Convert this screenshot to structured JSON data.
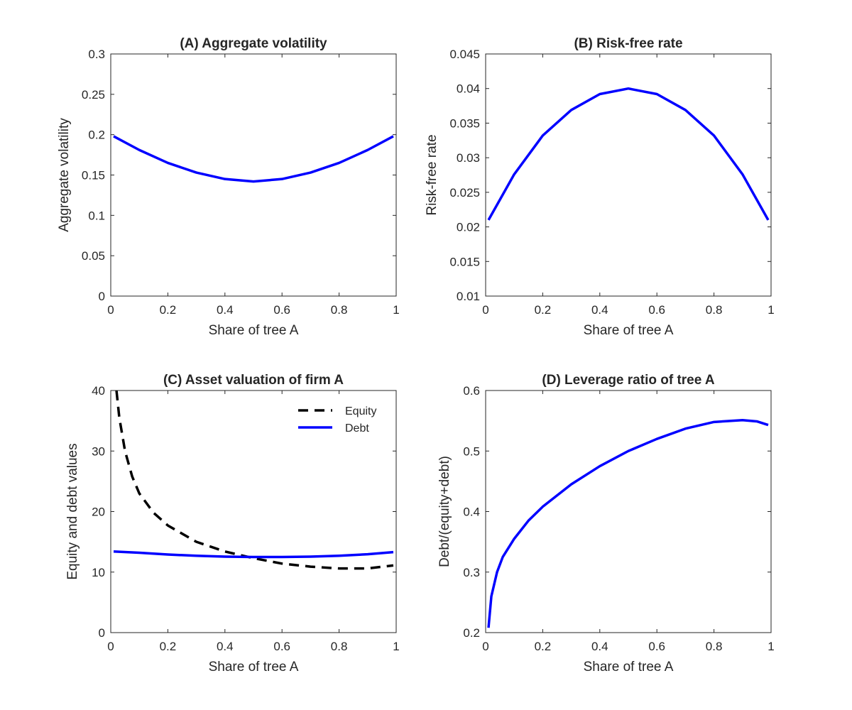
{
  "chart_data": [
    {
      "type": "line",
      "title": "(A) Aggregate volatility",
      "xlabel": "Share of tree A",
      "ylabel": "Aggregate volatility",
      "xlim": [
        0,
        1
      ],
      "ylim": [
        0,
        0.3
      ],
      "xticks": [
        0,
        0.2,
        0.4,
        0.6,
        0.8,
        1
      ],
      "xtick_labels": [
        "0",
        "0.2",
        "0.4",
        "0.6",
        "0.8",
        "1"
      ],
      "yticks": [
        0,
        0.05,
        0.1,
        0.15,
        0.2,
        0.25,
        0.3
      ],
      "ytick_labels": [
        "0",
        "0.05",
        "0.1",
        "0.15",
        "0.2",
        "0.25",
        "0.3"
      ],
      "grid": false,
      "series": [
        {
          "color": "#0000ff",
          "dash": "solid",
          "x": [
            0.01,
            0.1,
            0.2,
            0.3,
            0.4,
            0.5,
            0.6,
            0.7,
            0.8,
            0.9,
            0.99
          ],
          "y": [
            0.198,
            0.181,
            0.165,
            0.153,
            0.145,
            0.142,
            0.145,
            0.153,
            0.165,
            0.181,
            0.198
          ]
        }
      ]
    },
    {
      "type": "line",
      "title": "(B) Risk-free rate",
      "xlabel": "Share of tree A",
      "ylabel": "Risk-free rate",
      "xlim": [
        0,
        1
      ],
      "ylim": [
        0.01,
        0.045
      ],
      "xticks": [
        0,
        0.2,
        0.4,
        0.6,
        0.8,
        1
      ],
      "xtick_labels": [
        "0",
        "0.2",
        "0.4",
        "0.6",
        "0.8",
        "1"
      ],
      "yticks": [
        0.01,
        0.015,
        0.02,
        0.025,
        0.03,
        0.035,
        0.04,
        0.045
      ],
      "ytick_labels": [
        "0.01",
        "0.015",
        "0.02",
        "0.025",
        "0.03",
        "0.035",
        "0.04",
        "0.045"
      ],
      "grid": false,
      "series": [
        {
          "color": "#0000ff",
          "dash": "solid",
          "x": [
            0.01,
            0.1,
            0.2,
            0.3,
            0.4,
            0.5,
            0.6,
            0.7,
            0.8,
            0.9,
            0.99
          ],
          "y": [
            0.021,
            0.0276,
            0.0332,
            0.0369,
            0.0392,
            0.04,
            0.0392,
            0.0369,
            0.0332,
            0.0276,
            0.021
          ]
        }
      ]
    },
    {
      "type": "line",
      "title": "(C) Asset valuation of firm A",
      "xlabel": "Share of tree A",
      "ylabel": "Equity and debt values",
      "xlim": [
        0,
        1
      ],
      "ylim": [
        0,
        40
      ],
      "xticks": [
        0,
        0.2,
        0.4,
        0.6,
        0.8,
        1
      ],
      "xtick_labels": [
        "0",
        "0.2",
        "0.4",
        "0.6",
        "0.8",
        "1"
      ],
      "yticks": [
        0,
        10,
        20,
        30,
        40
      ],
      "ytick_labels": [
        "0",
        "10",
        "20",
        "30",
        "40"
      ],
      "grid": false,
      "legend": "top-right",
      "series": [
        {
          "name": "Equity",
          "color": "#000000",
          "dash": "dashed",
          "x": [
            0.02,
            0.03,
            0.05,
            0.075,
            0.1,
            0.15,
            0.2,
            0.3,
            0.4,
            0.5,
            0.6,
            0.7,
            0.8,
            0.9,
            0.99
          ],
          "y": [
            40,
            35.5,
            30,
            25.8,
            23,
            19.8,
            17.7,
            15,
            13.4,
            12.3,
            11.4,
            10.9,
            10.6,
            10.6,
            11.1
          ]
        },
        {
          "name": "Debt",
          "color": "#0000ff",
          "dash": "solid",
          "x": [
            0.01,
            0.1,
            0.2,
            0.3,
            0.4,
            0.5,
            0.6,
            0.7,
            0.8,
            0.9,
            0.99
          ],
          "y": [
            13.4,
            13.2,
            12.9,
            12.7,
            12.55,
            12.5,
            12.5,
            12.55,
            12.7,
            12.95,
            13.3
          ]
        }
      ]
    },
    {
      "type": "line",
      "title": "(D) Leverage ratio of tree A",
      "xlabel": "Share of tree A",
      "ylabel": "Debt/(equity+debt)",
      "xlim": [
        0,
        1
      ],
      "ylim": [
        0.2,
        0.6
      ],
      "xticks": [
        0,
        0.2,
        0.4,
        0.6,
        0.8,
        1
      ],
      "xtick_labels": [
        "0",
        "0.2",
        "0.4",
        "0.6",
        "0.8",
        "1"
      ],
      "yticks": [
        0.2,
        0.3,
        0.4,
        0.5,
        0.6
      ],
      "ytick_labels": [
        "0.2",
        "0.3",
        "0.4",
        "0.5",
        "0.6"
      ],
      "grid": false,
      "series": [
        {
          "color": "#0000ff",
          "dash": "solid",
          "x": [
            0.01,
            0.02,
            0.04,
            0.06,
            0.1,
            0.15,
            0.2,
            0.3,
            0.4,
            0.5,
            0.6,
            0.7,
            0.8,
            0.9,
            0.95,
            0.99
          ],
          "y": [
            0.208,
            0.26,
            0.3,
            0.325,
            0.355,
            0.385,
            0.408,
            0.445,
            0.475,
            0.5,
            0.52,
            0.537,
            0.548,
            0.551,
            0.549,
            0.543
          ]
        }
      ]
    }
  ]
}
